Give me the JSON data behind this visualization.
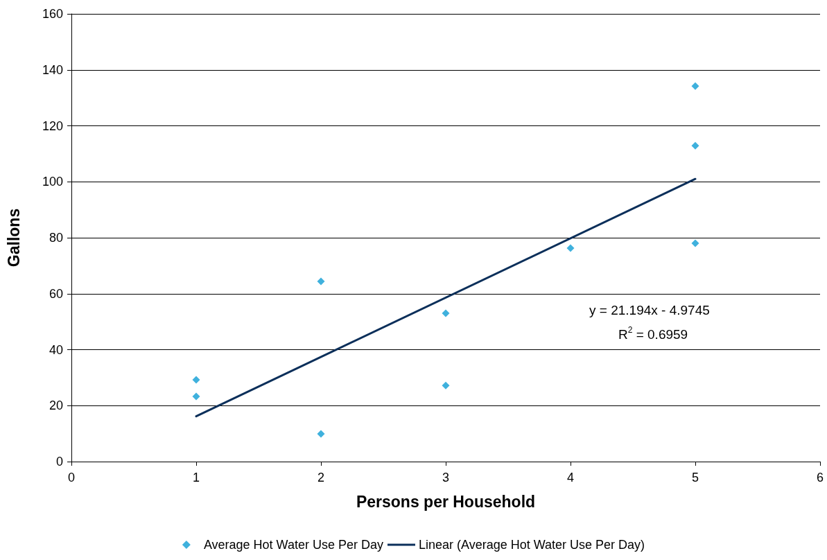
{
  "chart_data": {
    "type": "scatter",
    "xlabel": "Persons per Household",
    "ylabel": "Gallons",
    "xlim": [
      0,
      6
    ],
    "xticks": [
      0,
      1,
      2,
      3,
      4,
      5,
      6
    ],
    "ylim": [
      0,
      160
    ],
    "yticks": [
      0,
      20,
      40,
      60,
      80,
      100,
      120,
      140,
      160
    ],
    "grid": "y",
    "legend": "bottom",
    "series": [
      {
        "name": "Average Hot Water Use Per Day",
        "color": "#0f9ed5",
        "marker": "diamond",
        "x": [
          1,
          1,
          2,
          2,
          3,
          3,
          4,
          5,
          5,
          5
        ],
        "values": [
          29.2,
          23.3,
          64.4,
          9.9,
          53.0,
          27.2,
          76.3,
          134.2,
          112.9,
          78.0
        ]
      },
      {
        "name": "Linear (Average Hot Water Use Per Day)",
        "type": "line",
        "color": "#0b2f5a",
        "line_style": "solid",
        "x": [
          1,
          5
        ],
        "values": [
          16.2,
          101.0
        ]
      }
    ],
    "annotations": [
      "y = 21.194x - 4.9745",
      "R$^{2}$ = 0.6959"
    ]
  }
}
